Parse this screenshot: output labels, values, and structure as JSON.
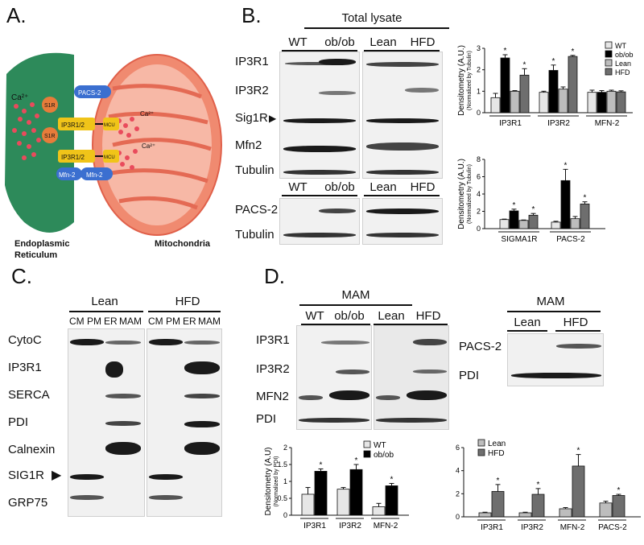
{
  "panel_a": {
    "letter": "A.",
    "labels": {
      "ca_er": "Ca²⁺",
      "pacs2": "PACS-2",
      "s1r_1": "S1R",
      "s1r_2": "S1R",
      "ip3r_1": "IP3R1/2",
      "ip3r_2": "IP3R1/2",
      "mcu_1": "MCU",
      "mcu_2": "MCU",
      "ca_m1": "Ca²⁺",
      "ca_m2": "Ca²⁺",
      "mfn_er": "Mfn-2",
      "mfn_mito": "Mfn-2",
      "er_name_1": "Endoplasmic",
      "er_name_2": "Reticulum",
      "mito_name": "Mitochondria"
    },
    "colors": {
      "er": "#2d8a5a",
      "mito": "#f08a70",
      "mito_inner": "#f7b8a6",
      "pacs": "#3b6fd0",
      "s1r": "#e77c3a",
      "ip3r": "#f0c419"
    }
  },
  "panel_b": {
    "letter": "B.",
    "header": "Total lysate",
    "groups_top": [
      "WT",
      "ob/ob",
      "Lean",
      "HFD"
    ],
    "groups_bottom": [
      "WT",
      "ob/ob",
      "Lean",
      "HFD"
    ],
    "rows": [
      "IP3R1",
      "IP3R2",
      "Sig1R",
      "Mfn2",
      "Tubulin"
    ],
    "rows_bottom": [
      "PACS-2",
      "Tubulin"
    ]
  },
  "panel_c": {
    "letter": "C.",
    "groups": [
      "Lean",
      "HFD"
    ],
    "lanes": [
      "CM",
      "PM",
      "ER",
      "MAM",
      "CM",
      "PM",
      "ER",
      "MAM"
    ],
    "rows": [
      "CytoC",
      "IP3R1",
      "SERCA",
      "PDI",
      "Calnexin",
      "SIG1R",
      "GRP75"
    ]
  },
  "panel_d": {
    "letter": "D.",
    "header_left": "MAM",
    "groups_left": [
      "WT",
      "ob/ob",
      "Lean",
      "HFD"
    ],
    "rows_left": [
      "IP3R1",
      "IP3R2",
      "MFN2",
      "PDI"
    ],
    "header_right": "MAM",
    "groups_right": [
      "Lean",
      "HFD"
    ],
    "rows_right": [
      "PACS-2",
      "PDI"
    ]
  },
  "chart_data": [
    {
      "id": "B-top",
      "type": "bar",
      "categories": [
        "IP3R1",
        "IP3R2",
        "MFN-2"
      ],
      "series": [
        {
          "name": "WT",
          "values": [
            0.7,
            0.95,
            0.95
          ],
          "errors": [
            0.2,
            0.05,
            0.1
          ]
        },
        {
          "name": "ob/ob",
          "values": [
            2.55,
            1.97,
            0.95
          ],
          "errors": [
            0.15,
            0.25,
            0.08
          ]
        },
        {
          "name": "Lean",
          "values": [
            1.0,
            1.1,
            1.0
          ],
          "errors": [
            0.03,
            0.1,
            0.05
          ]
        },
        {
          "name": "HFD",
          "values": [
            1.75,
            2.62,
            0.97
          ],
          "errors": [
            0.3,
            0.05,
            0.05
          ]
        }
      ],
      "significance": [
        [
          false,
          true,
          false,
          true
        ],
        [
          false,
          true,
          false,
          true
        ],
        [
          false,
          false,
          false,
          false
        ]
      ],
      "ylabel": "Densitometry (A.U.)",
      "ylabel_sub": "(Normalized by Tubulin)",
      "ylim": [
        0,
        3
      ],
      "yticks": [
        0,
        1,
        2,
        3
      ],
      "legend": "right"
    },
    {
      "id": "B-bottom",
      "type": "bar",
      "categories": [
        "SIGMA1R",
        "PACS-2"
      ],
      "series": [
        {
          "name": "WT",
          "values": [
            1.05,
            0.75
          ],
          "errors": [
            0.05,
            0.1
          ]
        },
        {
          "name": "ob/ob",
          "values": [
            2.05,
            5.55
          ],
          "errors": [
            0.2,
            1.3
          ]
        },
        {
          "name": "Lean",
          "values": [
            0.95,
            1.15
          ],
          "errors": [
            0.05,
            0.25
          ]
        },
        {
          "name": "HFD",
          "values": [
            1.55,
            2.85
          ],
          "errors": [
            0.2,
            0.25
          ]
        }
      ],
      "significance": [
        [
          false,
          true,
          false,
          true
        ],
        [
          false,
          true,
          false,
          true
        ]
      ],
      "ylabel": "Densitometry (A.U.)",
      "ylabel_sub": "(Normalized by Tubulin)",
      "ylim": [
        0,
        8
      ],
      "yticks": [
        0,
        2,
        4,
        6,
        8
      ]
    },
    {
      "id": "D-left",
      "type": "bar",
      "categories": [
        "IP3R1",
        "IP3R2",
        "MFN-2"
      ],
      "series": [
        {
          "name": "WT",
          "values": [
            0.62,
            0.77,
            0.25
          ],
          "errors": [
            0.2,
            0.05,
            0.1
          ]
        },
        {
          "name": "ob/ob",
          "values": [
            1.3,
            1.35,
            0.87
          ],
          "errors": [
            0.07,
            0.15,
            0.07
          ]
        }
      ],
      "significance": [
        [
          false,
          true
        ],
        [
          false,
          true
        ],
        [
          false,
          true
        ]
      ],
      "ylabel": "Densitometry (A.U)",
      "ylabel_sub": "(Normalized by PDI)",
      "ylim": [
        0,
        2.0
      ],
      "yticks": [
        0,
        0.5,
        1.0,
        1.5,
        2.0
      ],
      "legend": "top-right"
    },
    {
      "id": "D-right",
      "type": "bar",
      "categories": [
        "IP3R1",
        "IP3R2",
        "MFN-2",
        "PACS-2"
      ],
      "series": [
        {
          "name": "Lean",
          "values": [
            0.35,
            0.35,
            0.7,
            1.2
          ],
          "errors": [
            0.05,
            0.05,
            0.1,
            0.15
          ]
        },
        {
          "name": "HFD",
          "values": [
            2.2,
            1.95,
            4.4,
            1.85
          ],
          "errors": [
            0.6,
            0.5,
            1.0,
            0.1
          ]
        }
      ],
      "significance": [
        [
          false,
          true
        ],
        [
          false,
          true
        ],
        [
          false,
          true
        ],
        [
          false,
          true
        ]
      ],
      "ylim": [
        0,
        6
      ],
      "yticks": [
        0,
        2,
        4,
        6
      ],
      "legend": "top-right"
    }
  ]
}
